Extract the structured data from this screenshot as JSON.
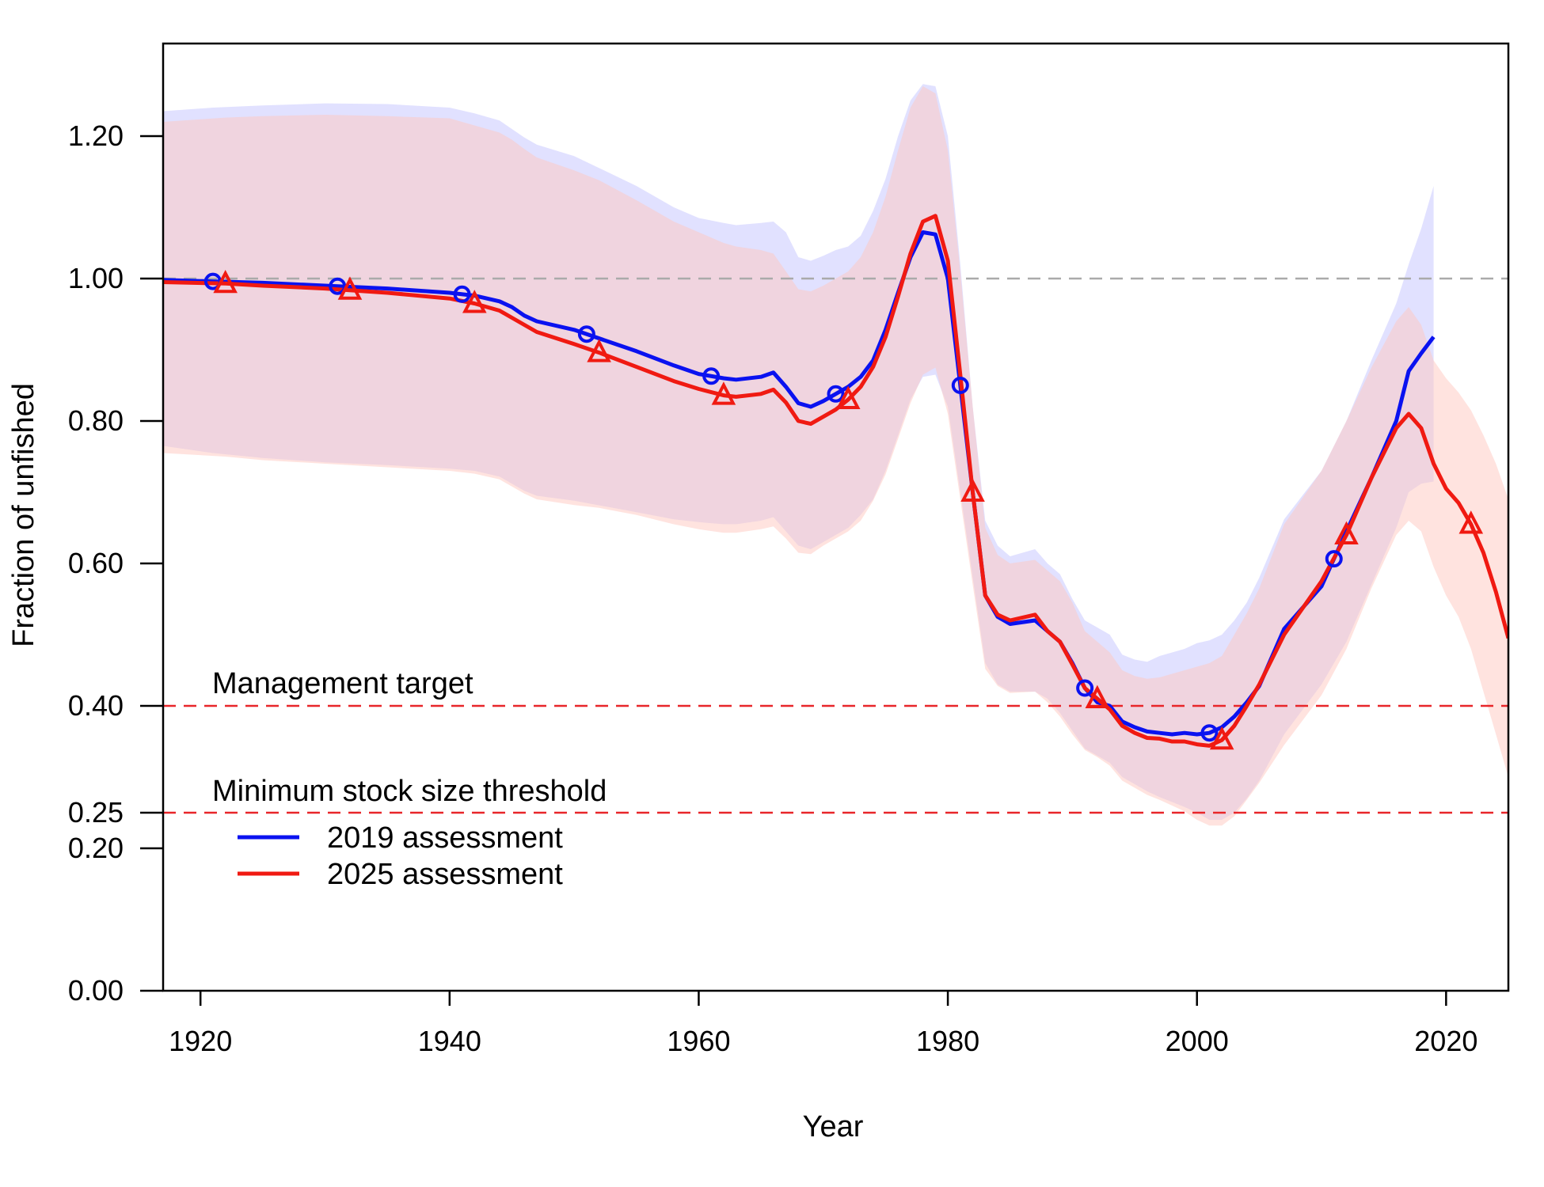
{
  "chart_data": {
    "type": "line",
    "xlabel": "Year",
    "ylabel": "Fraction of unfished",
    "xlim": [
      1917,
      2025
    ],
    "ylim": [
      0,
      1.33
    ],
    "x_ticks": [
      1920,
      1940,
      1960,
      1980,
      2000,
      2020
    ],
    "x_tick_labels": [
      "1920",
      "1940",
      "1960",
      "1980",
      "2000",
      "2020"
    ],
    "y_ticks": [
      0.0,
      0.2,
      0.25,
      0.4,
      0.6,
      0.8,
      1.0,
      1.2
    ],
    "y_tick_labels": [
      "0.00",
      "0.20",
      "0.25",
      "0.40",
      "0.60",
      "0.80",
      "1.00",
      "1.20"
    ],
    "grid": false,
    "legend_position": "bottom-left",
    "reference_lines": [
      {
        "y": 1.0,
        "color": "#aaaaaa",
        "style": "dashed",
        "label": ""
      },
      {
        "y": 0.4,
        "color": "#e8262a",
        "style": "dashed",
        "label": "Management target"
      },
      {
        "y": 0.25,
        "color": "#e8262a",
        "style": "dashed",
        "label": "Minimum stock size threshold"
      }
    ],
    "series": [
      {
        "name": "2019 assessment",
        "color": "#0a12f0",
        "band_color": "#c8c8ff",
        "marker": "circle",
        "marker_x": [
          1921,
          1931,
          1941,
          1951,
          1961,
          1971,
          1981,
          1991,
          2001,
          2011
        ],
        "x": [
          1917,
          1921,
          1925,
          1930,
          1935,
          1940,
          1942,
          1944,
          1945,
          1946,
          1947,
          1950,
          1955,
          1958,
          1960,
          1962,
          1963,
          1965,
          1966,
          1967,
          1968,
          1969,
          1970,
          1971,
          1972,
          1973,
          1974,
          1975,
          1976,
          1977,
          1978,
          1979,
          1980,
          1981,
          1982,
          1983,
          1984,
          1985,
          1987,
          1988,
          1989,
          1990,
          1991,
          1992,
          1993,
          1994,
          1995,
          1996,
          1997,
          1998,
          1999,
          2000,
          2001,
          2002,
          2003,
          2004,
          2005,
          2007,
          2010,
          2012,
          2014,
          2016,
          2017,
          2018,
          2019
        ],
        "values": [
          0.998,
          0.996,
          0.994,
          0.99,
          0.986,
          0.98,
          0.976,
          0.968,
          0.96,
          0.948,
          0.94,
          0.928,
          0.898,
          0.878,
          0.866,
          0.86,
          0.858,
          0.862,
          0.868,
          0.848,
          0.825,
          0.82,
          0.828,
          0.838,
          0.848,
          0.862,
          0.885,
          0.928,
          0.98,
          1.03,
          1.065,
          1.062,
          1.0,
          0.85,
          0.7,
          0.555,
          0.525,
          0.515,
          0.52,
          0.505,
          0.49,
          0.46,
          0.425,
          0.405,
          0.4,
          0.378,
          0.37,
          0.364,
          0.362,
          0.36,
          0.362,
          0.36,
          0.362,
          0.37,
          0.385,
          0.405,
          0.428,
          0.508,
          0.568,
          0.645,
          0.72,
          0.8,
          0.87,
          0.895,
          0.918
        ],
        "lower": [
          0.765,
          0.755,
          0.748,
          0.742,
          0.738,
          0.733,
          0.73,
          0.722,
          0.712,
          0.702,
          0.695,
          0.688,
          0.672,
          0.662,
          0.658,
          0.655,
          0.655,
          0.66,
          0.665,
          0.645,
          0.625,
          0.62,
          0.63,
          0.64,
          0.65,
          0.668,
          0.69,
          0.73,
          0.78,
          0.83,
          0.862,
          0.865,
          0.82,
          0.7,
          0.58,
          0.46,
          0.43,
          0.42,
          0.42,
          0.41,
          0.39,
          0.365,
          0.34,
          0.33,
          0.32,
          0.3,
          0.29,
          0.28,
          0.272,
          0.265,
          0.258,
          0.25,
          0.24,
          0.24,
          0.25,
          0.27,
          0.295,
          0.36,
          0.43,
          0.49,
          0.57,
          0.65,
          0.7,
          0.712,
          0.715
        ],
        "upper": [
          1.235,
          1.24,
          1.243,
          1.246,
          1.245,
          1.24,
          1.232,
          1.222,
          1.21,
          1.198,
          1.188,
          1.172,
          1.13,
          1.1,
          1.085,
          1.078,
          1.075,
          1.078,
          1.08,
          1.065,
          1.03,
          1.025,
          1.032,
          1.04,
          1.045,
          1.06,
          1.095,
          1.14,
          1.2,
          1.25,
          1.273,
          1.27,
          1.2,
          1.02,
          0.82,
          0.66,
          0.625,
          0.61,
          0.62,
          0.6,
          0.585,
          0.55,
          0.52,
          0.51,
          0.5,
          0.472,
          0.465,
          0.462,
          0.47,
          0.475,
          0.48,
          0.488,
          0.492,
          0.5,
          0.52,
          0.545,
          0.58,
          0.662,
          0.73,
          0.8,
          0.885,
          0.965,
          1.02,
          1.07,
          1.13
        ]
      },
      {
        "name": "2025 assessment",
        "color": "#f01a12",
        "band_color": "#ffc8c0",
        "marker": "triangle",
        "marker_x": [
          1922,
          1932,
          1942,
          1952,
          1962,
          1972,
          1982,
          1992,
          2002,
          2012,
          2022
        ],
        "x": [
          1917,
          1922,
          1925,
          1930,
          1935,
          1940,
          1942,
          1944,
          1945,
          1946,
          1947,
          1950,
          1952,
          1955,
          1958,
          1960,
          1962,
          1963,
          1965,
          1966,
          1967,
          1968,
          1969,
          1970,
          1971,
          1972,
          1973,
          1974,
          1975,
          1976,
          1977,
          1978,
          1979,
          1980,
          1981,
          1982,
          1983,
          1984,
          1985,
          1987,
          1988,
          1989,
          1990,
          1991,
          1992,
          1993,
          1994,
          1995,
          1996,
          1997,
          1998,
          1999,
          2000,
          2001,
          2002,
          2003,
          2004,
          2005,
          2007,
          2010,
          2012,
          2014,
          2016,
          2017,
          2018,
          2019,
          2020,
          2021,
          2022,
          2023,
          2024,
          2025
        ],
        "values": [
          0.995,
          0.993,
          0.99,
          0.986,
          0.98,
          0.972,
          0.965,
          0.955,
          0.945,
          0.935,
          0.925,
          0.908,
          0.896,
          0.876,
          0.856,
          0.845,
          0.836,
          0.834,
          0.838,
          0.844,
          0.826,
          0.8,
          0.796,
          0.806,
          0.816,
          0.83,
          0.848,
          0.876,
          0.918,
          0.975,
          1.035,
          1.08,
          1.088,
          1.025,
          0.865,
          0.7,
          0.555,
          0.528,
          0.52,
          0.528,
          0.505,
          0.49,
          0.458,
          0.425,
          0.41,
          0.395,
          0.372,
          0.362,
          0.355,
          0.354,
          0.35,
          0.35,
          0.346,
          0.344,
          0.352,
          0.372,
          0.4,
          0.43,
          0.5,
          0.575,
          0.64,
          0.72,
          0.79,
          0.81,
          0.79,
          0.74,
          0.705,
          0.685,
          0.655,
          0.615,
          0.56,
          0.495
        ],
        "lower": [
          0.755,
          0.75,
          0.745,
          0.74,
          0.735,
          0.73,
          0.726,
          0.718,
          0.708,
          0.698,
          0.69,
          0.682,
          0.678,
          0.668,
          0.655,
          0.648,
          0.643,
          0.643,
          0.648,
          0.652,
          0.635,
          0.615,
          0.613,
          0.625,
          0.635,
          0.645,
          0.66,
          0.688,
          0.725,
          0.775,
          0.825,
          0.865,
          0.875,
          0.81,
          0.69,
          0.57,
          0.452,
          0.428,
          0.418,
          0.42,
          0.405,
          0.385,
          0.36,
          0.338,
          0.328,
          0.316,
          0.295,
          0.285,
          0.275,
          0.268,
          0.26,
          0.252,
          0.24,
          0.232,
          0.232,
          0.245,
          0.268,
          0.292,
          0.345,
          0.415,
          0.48,
          0.565,
          0.64,
          0.66,
          0.645,
          0.595,
          0.555,
          0.525,
          0.48,
          0.42,
          0.36,
          0.3
        ],
        "upper": [
          1.22,
          1.226,
          1.228,
          1.23,
          1.228,
          1.225,
          1.215,
          1.205,
          1.195,
          1.182,
          1.17,
          1.152,
          1.138,
          1.11,
          1.08,
          1.065,
          1.05,
          1.045,
          1.04,
          1.035,
          1.01,
          0.985,
          0.982,
          0.99,
          1.0,
          1.01,
          1.03,
          1.065,
          1.115,
          1.18,
          1.24,
          1.27,
          1.26,
          1.18,
          1.01,
          0.82,
          0.65,
          0.612,
          0.6,
          0.605,
          0.59,
          0.575,
          0.545,
          0.505,
          0.49,
          0.475,
          0.45,
          0.442,
          0.438,
          0.44,
          0.445,
          0.45,
          0.455,
          0.46,
          0.47,
          0.5,
          0.53,
          0.565,
          0.655,
          0.73,
          0.8,
          0.875,
          0.94,
          0.96,
          0.935,
          0.885,
          0.86,
          0.84,
          0.815,
          0.78,
          0.74,
          0.69
        ]
      }
    ]
  }
}
